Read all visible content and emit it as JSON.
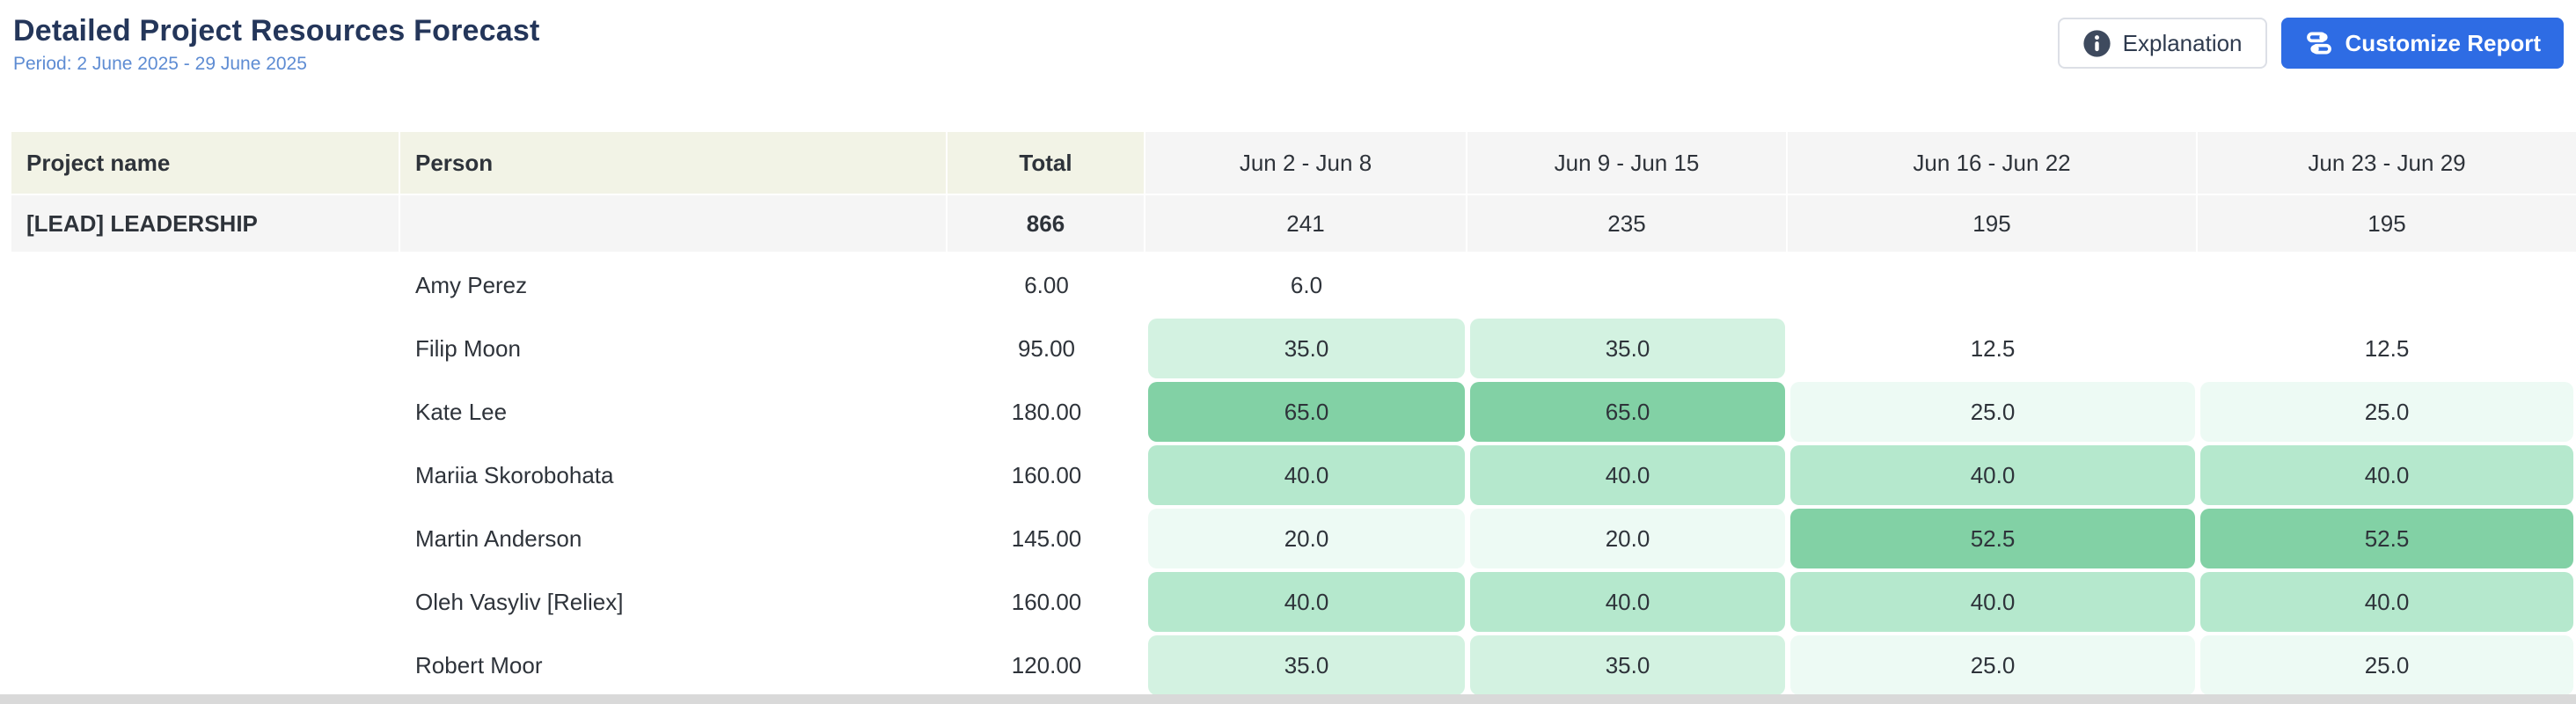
{
  "header": {
    "title": "Detailed Project Resources Forecast",
    "period": "Period: 2 June 2025 - 29 June 2025",
    "explanation_label": "Explanation",
    "customize_label": "Customize Report"
  },
  "icons": {
    "explanation": "info-circle-icon",
    "customize": "sliders-icon"
  },
  "colors": {
    "accent": "#2e6ce4",
    "title-color": "#24365a",
    "period-color": "#5e8cd3",
    "beige": "#f2f3e6",
    "gray": "#f5f5f5",
    "text": "#2e333a",
    "chip-high": "#82d1a5",
    "chip-mid": "#b5e8cd",
    "chip-low": "#d3f2e1",
    "chip-faint": "#edfaf4"
  },
  "table": {
    "columns": [
      "Project name",
      "Person",
      "Total",
      "Jun 2 - Jun 8",
      "Jun 9 - Jun 15",
      "Jun 16 - Jun 22",
      "Jun 23 - Jun 29"
    ],
    "group_row": {
      "project_name": "[LEAD] LEADERSHIP",
      "total": "866",
      "weeks": [
        "241",
        "235",
        "195",
        "195"
      ]
    },
    "rows": [
      {
        "person": "Amy Perez",
        "total": "6.00",
        "weeks": [
          {
            "v": "6.0",
            "bg": "none"
          },
          {
            "v": "",
            "bg": "empty"
          },
          {
            "v": "",
            "bg": "empty"
          },
          {
            "v": "",
            "bg": "empty"
          }
        ]
      },
      {
        "person": "Filip Moon",
        "total": "95.00",
        "weeks": [
          {
            "v": "35.0",
            "bg": "low"
          },
          {
            "v": "35.0",
            "bg": "low"
          },
          {
            "v": "12.5",
            "bg": "none"
          },
          {
            "v": "12.5",
            "bg": "none"
          }
        ]
      },
      {
        "person": "Kate Lee",
        "total": "180.00",
        "weeks": [
          {
            "v": "65.0",
            "bg": "high"
          },
          {
            "v": "65.0",
            "bg": "high"
          },
          {
            "v": "25.0",
            "bg": "faint"
          },
          {
            "v": "25.0",
            "bg": "faint"
          }
        ]
      },
      {
        "person": "Mariia Skorobohata",
        "total": "160.00",
        "weeks": [
          {
            "v": "40.0",
            "bg": "mid"
          },
          {
            "v": "40.0",
            "bg": "mid"
          },
          {
            "v": "40.0",
            "bg": "mid"
          },
          {
            "v": "40.0",
            "bg": "mid"
          }
        ]
      },
      {
        "person": "Martin Anderson",
        "total": "145.00",
        "weeks": [
          {
            "v": "20.0",
            "bg": "faint"
          },
          {
            "v": "20.0",
            "bg": "faint"
          },
          {
            "v": "52.5",
            "bg": "high"
          },
          {
            "v": "52.5",
            "bg": "high"
          }
        ]
      },
      {
        "person": "Oleh Vasyliv [Reliex]",
        "total": "160.00",
        "weeks": [
          {
            "v": "40.0",
            "bg": "mid"
          },
          {
            "v": "40.0",
            "bg": "mid"
          },
          {
            "v": "40.0",
            "bg": "mid"
          },
          {
            "v": "40.0",
            "bg": "mid"
          }
        ]
      },
      {
        "person": "Robert Moor",
        "total": "120.00",
        "weeks": [
          {
            "v": "35.0",
            "bg": "low"
          },
          {
            "v": "35.0",
            "bg": "low"
          },
          {
            "v": "25.0",
            "bg": "faint"
          },
          {
            "v": "25.0",
            "bg": "faint"
          }
        ]
      }
    ]
  }
}
